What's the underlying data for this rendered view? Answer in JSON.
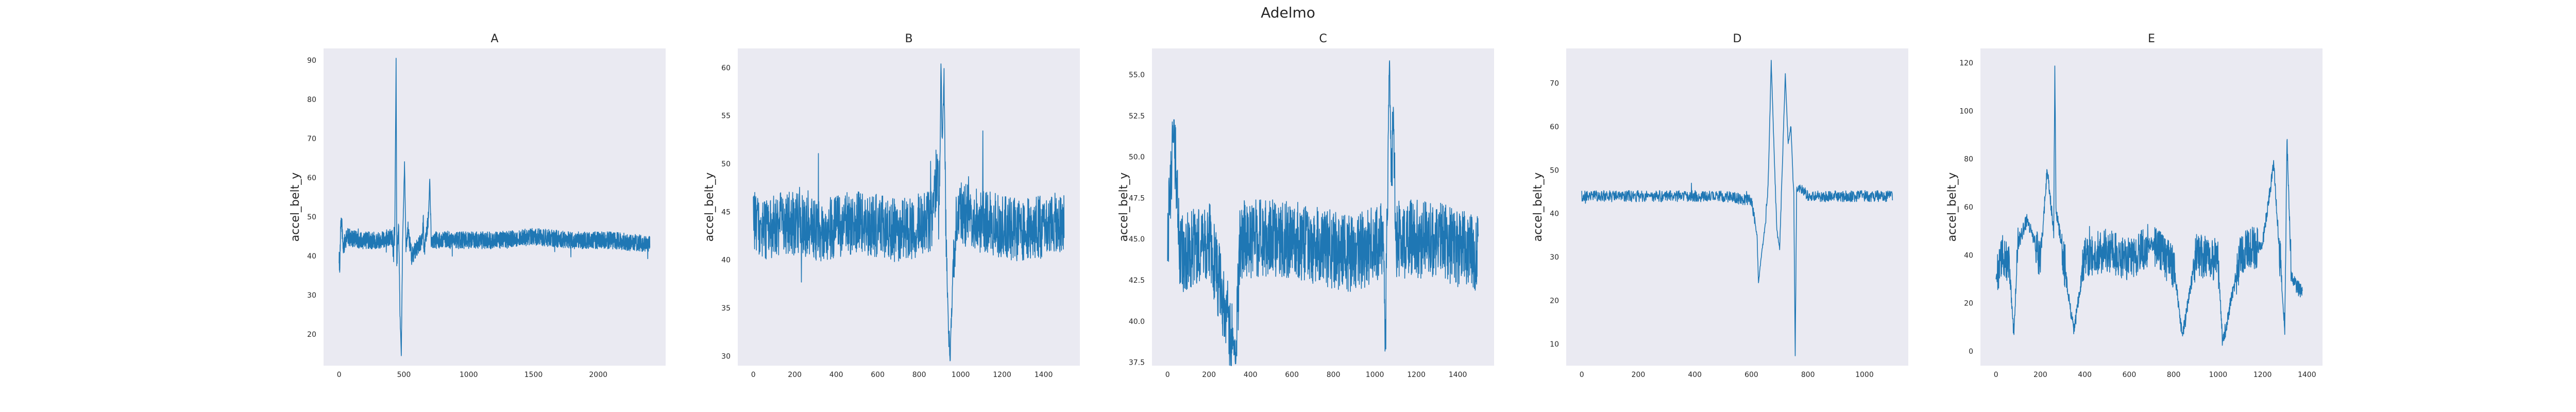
{
  "figure_title": "Adelmo",
  "line_color": "#1f77b4",
  "panel_bg": "#eaeaf2",
  "chart_data": [
    {
      "type": "line",
      "title": "A",
      "xlabel": "",
      "ylabel": "accel_belt_y",
      "xlim": [
        -120,
        2520
      ],
      "ylim": [
        12,
        93
      ],
      "xticks": [
        0,
        500,
        1000,
        1500,
        2000
      ],
      "yticks": [
        20,
        30,
        40,
        50,
        60,
        70,
        80,
        90
      ],
      "grid": false,
      "series": [
        {
          "n": 2400,
          "baseline": 44,
          "noise": 2.2,
          "points": [
            [
              0,
              40
            ],
            [
              5,
              36
            ],
            [
              12,
              47
            ],
            [
              20,
              49
            ],
            [
              30,
              42
            ],
            [
              60,
              45
            ],
            [
              150,
              44
            ],
            [
              300,
              44
            ],
            [
              410,
              45
            ],
            [
              420,
              40
            ],
            [
              430,
              47
            ],
            [
              440,
              90
            ],
            [
              445,
              38
            ],
            [
              460,
              48
            ],
            [
              470,
              25
            ],
            [
              480,
              15
            ],
            [
              490,
              43
            ],
            [
              505,
              64
            ],
            [
              515,
              42
            ],
            [
              530,
              47
            ],
            [
              560,
              40
            ],
            [
              600,
              42
            ],
            [
              640,
              44
            ],
            [
              650,
              49
            ],
            [
              655,
              40
            ],
            [
              690,
              50
            ],
            [
              700,
              60
            ],
            [
              710,
              44
            ],
            [
              900,
              44
            ],
            [
              1200,
              44
            ],
            [
              1500,
              45
            ],
            [
              1800,
              44
            ],
            [
              2100,
              44
            ],
            [
              2380,
              43
            ]
          ]
        }
      ]
    },
    {
      "type": "line",
      "title": "B",
      "xlabel": "",
      "ylabel": "accel_belt_y",
      "xlim": [
        -75,
        1575
      ],
      "ylim": [
        29,
        62
      ],
      "xticks": [
        0,
        200,
        400,
        600,
        800,
        1000,
        1200,
        1400
      ],
      "yticks": [
        30,
        35,
        40,
        45,
        50,
        55,
        60
      ],
      "grid": false,
      "series": [
        {
          "n": 1500,
          "baseline": 43.5,
          "noise": 3.3,
          "points": [
            [
              0,
              44
            ],
            [
              40,
              43
            ],
            [
              150,
              44
            ],
            [
              300,
              43
            ],
            [
              500,
              44
            ],
            [
              700,
              43
            ],
            [
              860,
              44
            ],
            [
              890,
              50
            ],
            [
              900,
              48
            ],
            [
              905,
              61
            ],
            [
              910,
              52
            ],
            [
              920,
              59
            ],
            [
              930,
              42
            ],
            [
              940,
              33
            ],
            [
              950,
              30
            ],
            [
              960,
              37
            ],
            [
              980,
              45
            ],
            [
              1100,
              44
            ],
            [
              1300,
              43
            ],
            [
              1490,
              44
            ]
          ]
        }
      ]
    },
    {
      "type": "line",
      "title": "C",
      "xlabel": "",
      "ylabel": "accel_belt_y",
      "xlim": [
        -75,
        1575
      ],
      "ylim": [
        37.3,
        56.6
      ],
      "xticks": [
        0,
        200,
        400,
        600,
        800,
        1000,
        1200,
        1400
      ],
      "yticks": [
        37.5,
        40.0,
        42.5,
        45.0,
        47.5,
        50.0,
        52.5,
        55.0
      ],
      "grid": false,
      "series": [
        {
          "n": 1500,
          "baseline": 45,
          "noise": 2.4,
          "points": [
            [
              0,
              45
            ],
            [
              20,
              49
            ],
            [
              30,
              52
            ],
            [
              60,
              44
            ],
            [
              200,
              45
            ],
            [
              330,
              38
            ],
            [
              350,
              45
            ],
            [
              600,
              45
            ],
            [
              900,
              44
            ],
            [
              1040,
              45
            ],
            [
              1050,
              38
            ],
            [
              1070,
              56
            ],
            [
              1080,
              48
            ],
            [
              1090,
              53
            ],
            [
              1100,
              45
            ],
            [
              1300,
              45
            ],
            [
              1490,
              44
            ]
          ]
        }
      ]
    },
    {
      "type": "line",
      "title": "D",
      "xlabel": "",
      "ylabel": "accel_belt_y",
      "xlim": [
        -55,
        1155
      ],
      "ylim": [
        5,
        78
      ],
      "xticks": [
        0,
        200,
        400,
        600,
        800,
        1000
      ],
      "yticks": [
        10,
        20,
        30,
        40,
        50,
        60,
        70
      ],
      "grid": false,
      "series": [
        {
          "n": 1100,
          "baseline": 44,
          "noise": 1.3,
          "points": [
            [
              0,
              44
            ],
            [
              100,
              44
            ],
            [
              300,
              44
            ],
            [
              500,
              44
            ],
            [
              600,
              43
            ],
            [
              620,
              35
            ],
            [
              625,
              24
            ],
            [
              635,
              30
            ],
            [
              650,
              38
            ],
            [
              660,
              48
            ],
            [
              670,
              75
            ],
            [
              680,
              55
            ],
            [
              690,
              36
            ],
            [
              700,
              32
            ],
            [
              710,
              52
            ],
            [
              720,
              72
            ],
            [
              730,
              56
            ],
            [
              740,
              60
            ],
            [
              750,
              44
            ],
            [
              755,
              7
            ],
            [
              760,
              45
            ],
            [
              780,
              46
            ],
            [
              800,
              44
            ],
            [
              900,
              44
            ],
            [
              1050,
              44
            ]
          ]
        }
      ]
    },
    {
      "type": "line",
      "title": "E",
      "xlabel": "",
      "ylabel": "accel_belt_y",
      "xlim": [
        -70,
        1470
      ],
      "ylim": [
        -6,
        126
      ],
      "xticks": [
        0,
        200,
        400,
        600,
        800,
        1000,
        1200,
        1400
      ],
      "yticks": [
        0,
        20,
        40,
        60,
        80,
        100,
        120
      ],
      "grid": false,
      "series": [
        {
          "n": 1380,
          "baseline": 38,
          "noise": 9,
          "points": [
            [
              0,
              30
            ],
            [
              30,
              40
            ],
            [
              60,
              35
            ],
            [
              80,
              8
            ],
            [
              100,
              45
            ],
            [
              140,
              55
            ],
            [
              200,
              38
            ],
            [
              230,
              75
            ],
            [
              260,
              50
            ],
            [
              265,
              120
            ],
            [
              270,
              60
            ],
            [
              300,
              40
            ],
            [
              350,
              8
            ],
            [
              400,
              40
            ],
            [
              500,
              42
            ],
            [
              600,
              38
            ],
            [
              700,
              45
            ],
            [
              800,
              35
            ],
            [
              840,
              6
            ],
            [
              900,
              40
            ],
            [
              1000,
              38
            ],
            [
              1020,
              3
            ],
            [
              1100,
              40
            ],
            [
              1200,
              45
            ],
            [
              1250,
              78
            ],
            [
              1300,
              10
            ],
            [
              1310,
              88
            ],
            [
              1330,
              30
            ],
            [
              1370,
              25
            ]
          ]
        }
      ]
    }
  ]
}
